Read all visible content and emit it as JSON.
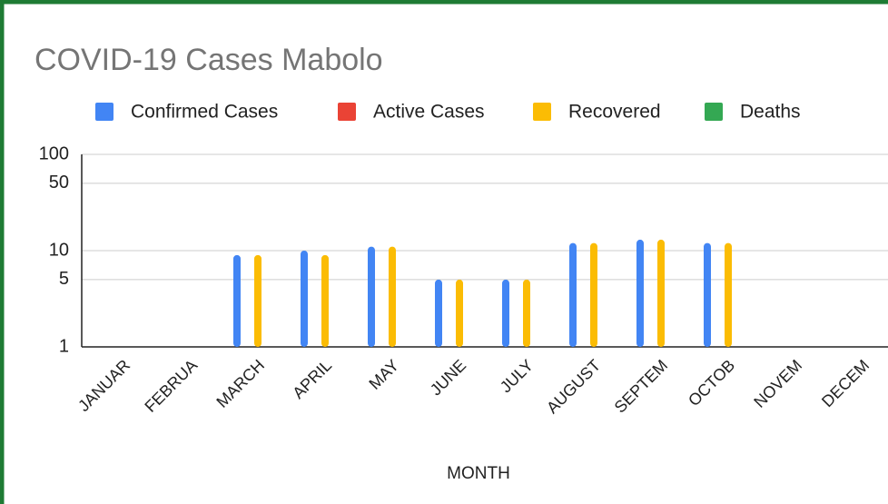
{
  "chart_data": {
    "type": "bar",
    "title": "COVID-19 Cases Mabolo",
    "x_label": "MONTH",
    "categories": [
      "JANUAR",
      "FEBRUA",
      "MARCH",
      "APRIL",
      "MAY",
      "JUNE",
      "JULY",
      "AUGUST",
      "SEPTEM",
      "OCTOB",
      "NOVEM",
      "DECEM"
    ],
    "series": [
      {
        "name": "Confirmed Cases",
        "color": "#4285f4",
        "values": [
          null,
          null,
          9,
          10,
          11,
          5,
          5,
          12,
          13,
          12,
          null,
          null
        ]
      },
      {
        "name": "Active Cases",
        "color": "#ea4335",
        "values": [
          null,
          null,
          null,
          null,
          null,
          null,
          null,
          null,
          null,
          null,
          null,
          null
        ]
      },
      {
        "name": "Recovered",
        "color": "#fbbc04",
        "values": [
          null,
          null,
          9,
          9,
          11,
          5,
          5,
          12,
          13,
          12,
          null,
          null
        ]
      },
      {
        "name": "Deaths",
        "color": "#34a853",
        "values": [
          null,
          null,
          null,
          null,
          null,
          null,
          null,
          null,
          null,
          null,
          null,
          null
        ]
      }
    ],
    "ylim": [
      1,
      100
    ],
    "yticks": [
      1,
      5,
      10,
      50,
      100
    ],
    "log_scale": true,
    "grid": true,
    "legend": "top"
  }
}
